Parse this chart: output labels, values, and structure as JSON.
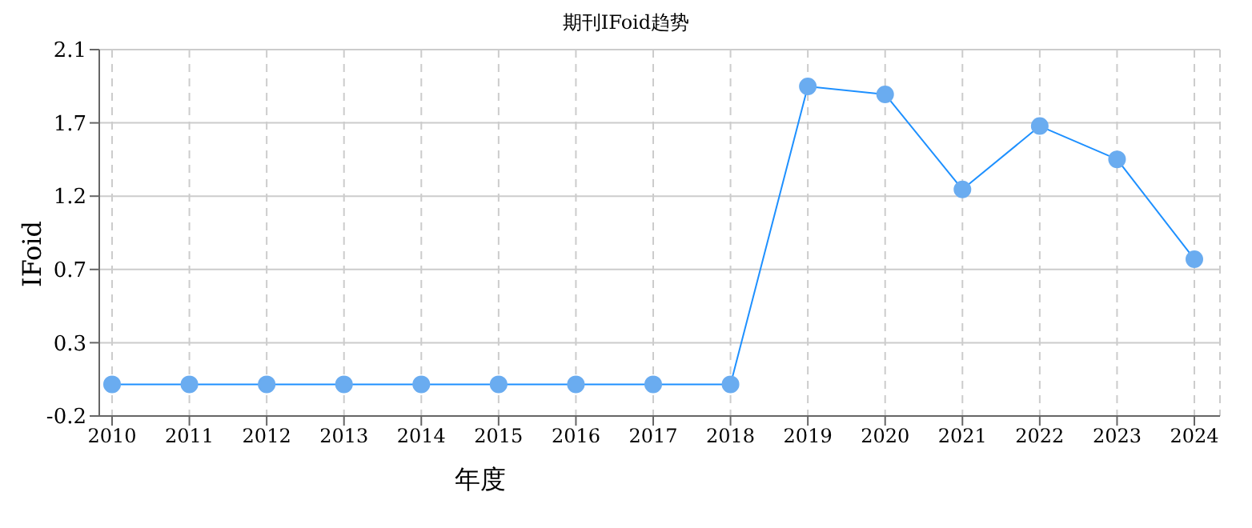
{
  "chart_data": {
    "type": "line",
    "title": "期刊IFoid趋势",
    "xlabel": "年度",
    "ylabel": "IFoid",
    "categories": [
      "2010",
      "2011",
      "2012",
      "2013",
      "2014",
      "2015",
      "2016",
      "2017",
      "2018",
      "2019",
      "2020",
      "2021",
      "2022",
      "2023",
      "2024"
    ],
    "series": [
      {
        "color": "#1e90ff",
        "values": [
          0,
          0,
          0,
          0,
          0,
          0,
          0,
          0,
          0,
          1.88,
          1.83,
          1.23,
          1.63,
          1.42,
          0.79
        ]
      }
    ],
    "ylim": [
      -0.2,
      2.1125
    ],
    "yticks": [
      {
        "value": -0.2,
        "label": "-0.2"
      },
      {
        "value": 0.2625,
        "label": "0.3"
      },
      {
        "value": 0.725,
        "label": "0.7"
      },
      {
        "value": 1.1875,
        "label": "1.2"
      },
      {
        "value": 1.65,
        "label": "1.7"
      },
      {
        "value": 2.1125,
        "label": "2.1"
      }
    ],
    "grid": true,
    "marker": "circle",
    "line_style": "solid",
    "legend": false
  }
}
